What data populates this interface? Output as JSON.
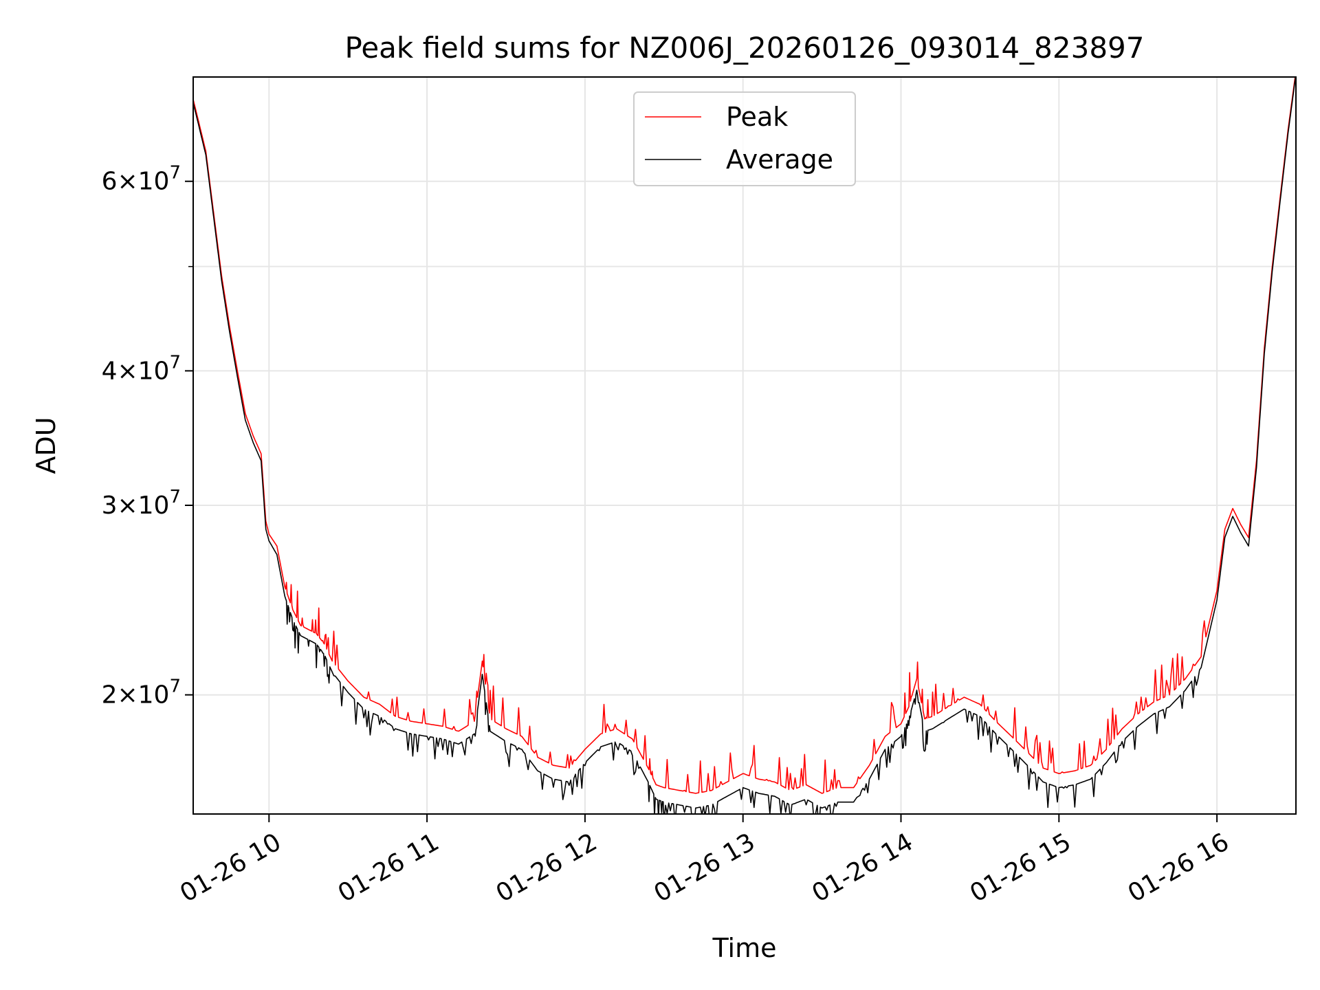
{
  "chart_data": {
    "type": "line",
    "title": "Peak field sums for NZ006J_20260126_093014_823897",
    "xlabel": "Time",
    "ylabel": "ADU",
    "yscale": "log",
    "ylim": [
      15500000,
      75000000
    ],
    "xlim_hours": [
      9.52,
      16.5
    ],
    "grid": true,
    "legend_position": "upper center",
    "x_ticks": [
      {
        "value": 10,
        "label": "01-26 10"
      },
      {
        "value": 11,
        "label": "01-26 11"
      },
      {
        "value": 12,
        "label": "01-26 12"
      },
      {
        "value": 13,
        "label": "01-26 13"
      },
      {
        "value": 14,
        "label": "01-26 14"
      },
      {
        "value": 15,
        "label": "01-26 15"
      },
      {
        "value": 16,
        "label": "01-26 16"
      }
    ],
    "y_ticks": [
      {
        "value": 20000000,
        "mantissa": "2",
        "base": "10",
        "exp": "7"
      },
      {
        "value": 30000000,
        "mantissa": "3",
        "base": "10",
        "exp": "7"
      },
      {
        "value": 40000000,
        "mantissa": "4",
        "base": "10",
        "exp": "7"
      },
      {
        "value": 60000000,
        "mantissa": "6",
        "base": "10",
        "exp": "7"
      }
    ],
    "y_minor_ticks": [
      50000000
    ],
    "time_hours": [
      9.52,
      9.6,
      9.65,
      9.7,
      9.75,
      9.8,
      9.85,
      9.9,
      9.95,
      9.98,
      10.0,
      10.05,
      10.1,
      10.15,
      10.2,
      10.25,
      10.3,
      10.35,
      10.4,
      10.5,
      10.6,
      10.7,
      10.8,
      10.9,
      11.0,
      11.1,
      11.2,
      11.3,
      11.35,
      11.4,
      11.5,
      11.6,
      11.7,
      11.8,
      11.9,
      12.0,
      12.1,
      12.2,
      12.3,
      12.4,
      12.45,
      12.5,
      12.6,
      12.7,
      12.8,
      12.9,
      13.0,
      13.1,
      13.2,
      13.3,
      13.4,
      13.5,
      13.6,
      13.7,
      13.8,
      13.9,
      14.0,
      14.05,
      14.1,
      14.15,
      14.2,
      14.3,
      14.4,
      14.5,
      14.6,
      14.7,
      14.8,
      14.9,
      15.0,
      15.1,
      15.2,
      15.3,
      15.4,
      15.5,
      15.6,
      15.7,
      15.8,
      15.9,
      16.0,
      16.05,
      16.1,
      16.15,
      16.2,
      16.25,
      16.3,
      16.35,
      16.4,
      16.45,
      16.5
    ],
    "series": [
      {
        "name": "Peak",
        "color": "#ff0000",
        "values": [
          71500000,
          64000000,
          56000000,
          49000000,
          44000000,
          40000000,
          36500000,
          34800000,
          33500000,
          29000000,
          28200000,
          27500000,
          25200000,
          24000000,
          23200000,
          23000000,
          22800000,
          22300000,
          21500000,
          20600000,
          19900000,
          19600000,
          19100000,
          18900000,
          18800000,
          18700000,
          18500000,
          18900000,
          21500000,
          19000000,
          18600000,
          18300000,
          17500000,
          17200000,
          17100000,
          17800000,
          18400000,
          18600000,
          18200000,
          17100000,
          16500000,
          16400000,
          16300000,
          16200000,
          16300000,
          16600000,
          16900000,
          16700000,
          16600000,
          16300000,
          16500000,
          16200000,
          16400000,
          16400000,
          17200000,
          18300000,
          18800000,
          19500000,
          20700000,
          19000000,
          19100000,
          19500000,
          19900000,
          19600000,
          18900000,
          18300000,
          17700000,
          17100000,
          16900000,
          17000000,
          17200000,
          17800000,
          18600000,
          19200000,
          19700000,
          20000000,
          20700000,
          21700000,
          25000000,
          28500000,
          29800000,
          28800000,
          28000000,
          33000000,
          42000000,
          50000000,
          58000000,
          67000000,
          76000000
        ]
      },
      {
        "name": "Average",
        "color": "#000000",
        "values": [
          71000000,
          63500000,
          55500000,
          48500000,
          43500000,
          39500000,
          36000000,
          34300000,
          33000000,
          28500000,
          27800000,
          27000000,
          24700000,
          23500000,
          22700000,
          22500000,
          22300000,
          21800000,
          21000000,
          20100000,
          19400000,
          19100000,
          18600000,
          18400000,
          18300000,
          18200000,
          18000000,
          18400000,
          20900000,
          18500000,
          18100000,
          17800000,
          17000000,
          16700000,
          16600000,
          17300000,
          17900000,
          18100000,
          17700000,
          16600000,
          16000000,
          15900000,
          15800000,
          15700000,
          15800000,
          16100000,
          16400000,
          16200000,
          16100000,
          15800000,
          16000000,
          15700000,
          15900000,
          15900000,
          16700000,
          17800000,
          18300000,
          19000000,
          20200000,
          18500000,
          18600000,
          19000000,
          19400000,
          19100000,
          18400000,
          17800000,
          17200000,
          16600000,
          16400000,
          16500000,
          16700000,
          17300000,
          18100000,
          18700000,
          19200000,
          19500000,
          20200000,
          21200000,
          24500000,
          28000000,
          29300000,
          28300000,
          27500000,
          32500000,
          41500000,
          49500000,
          57500000,
          66500000,
          75500000
        ]
      }
    ]
  }
}
